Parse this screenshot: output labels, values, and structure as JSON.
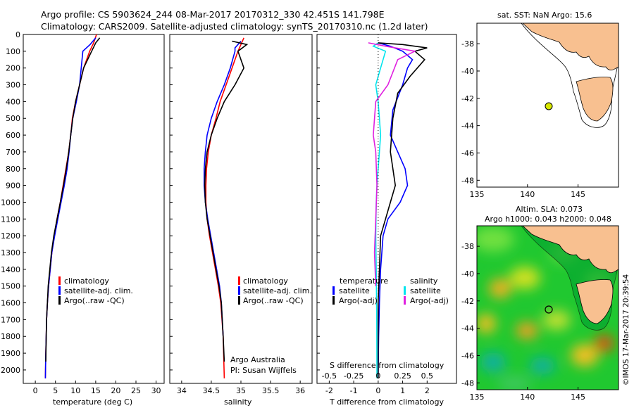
{
  "header": {
    "line1": "Argo profile: CS 5903624_244 08-Mar-2017 20170312_330 42.451S 141.798E",
    "line2": "Climatology: CARS2009. Satellite-adjusted climatology: synTS_20170310.nc (1.2d later)"
  },
  "chart_data": [
    {
      "type": "line",
      "panel": "temperature",
      "xlabel": "temperature (deg C)",
      "xlim": [
        -3,
        32
      ],
      "xticks": [
        0,
        5,
        10,
        15,
        20,
        25,
        30
      ],
      "ylim": [
        0,
        2080
      ],
      "yticks": [
        0,
        100,
        200,
        300,
        400,
        500,
        600,
        700,
        800,
        900,
        1000,
        1100,
        1200,
        1300,
        1400,
        1500,
        1600,
        1700,
        1800,
        1900,
        2000
      ],
      "legend": [
        "climatology",
        "satellite-adj. clim.",
        "Argo(..raw -QC)"
      ],
      "colors": {
        "climatology": "#ff0000",
        "satellite": "#0000ff",
        "argo": "#000000"
      },
      "series": [
        {
          "name": "climatology",
          "x": [
            15.2,
            14.5,
            13.5,
            12,
            11,
            10,
            9.2,
            8.8,
            8.3,
            7.6,
            6.9,
            6.2,
            5.4,
            4.7,
            4.1,
            3.7,
            3.3,
            3.0,
            2.8,
            2.7,
            2.6,
            2.5
          ],
          "y": [
            0,
            50,
            100,
            200,
            300,
            400,
            500,
            600,
            700,
            800,
            900,
            1000,
            1100,
            1200,
            1300,
            1400,
            1500,
            1600,
            1700,
            1800,
            1900,
            2050
          ]
        },
        {
          "name": "satellite-adj. clim.",
          "x": [
            15,
            13.6,
            11.8,
            11,
            10.2,
            9.3,
            8.8,
            8.4,
            7.9,
            7.2,
            6.4,
            5.6,
            4.8,
            4.1,
            3.7,
            3.3,
            3.0,
            2.8,
            2.7,
            2.6,
            2.5
          ],
          "y": [
            20,
            60,
            100,
            300,
            400,
            500,
            600,
            700,
            800,
            900,
            1000,
            1100,
            1200,
            1300,
            1400,
            1500,
            1600,
            1700,
            1800,
            1900,
            2050
          ]
        },
        {
          "name": "Argo(..raw -QC)",
          "x": [
            16,
            15,
            14,
            12,
            11,
            10,
            9.3,
            8.8,
            8.3,
            7.7,
            7.0,
            6.2,
            5.4,
            4.6,
            4.0,
            3.6,
            3.2,
            3.0,
            2.8,
            2.7,
            2.6
          ],
          "y": [
            20,
            50,
            100,
            200,
            300,
            400,
            500,
            600,
            700,
            800,
            900,
            1000,
            1100,
            1200,
            1300,
            1400,
            1500,
            1600,
            1700,
            1800,
            1950
          ]
        }
      ]
    },
    {
      "type": "line",
      "panel": "salinity",
      "xlabel": "salinity",
      "xlim": [
        33.8,
        36.2
      ],
      "xticks": [
        34,
        34.5,
        35,
        35.5,
        36
      ],
      "ylim": [
        0,
        2080
      ],
      "legend": [
        "climatology",
        "satellite-adj. clim.",
        "Argo(..raw -QC)"
      ],
      "annotation": [
        "Argo Australia",
        "PI: Susan Wijffels"
      ],
      "series": [
        {
          "name": "climatology",
          "x": [
            35.05,
            35.0,
            34.95,
            34.85,
            34.75,
            34.65,
            34.58,
            34.5,
            34.45,
            34.42,
            34.41,
            34.41,
            34.43,
            34.47,
            34.52,
            34.57,
            34.62,
            34.66,
            34.7,
            34.72
          ],
          "y": [
            20,
            60,
            100,
            200,
            300,
            400,
            500,
            600,
            700,
            800,
            900,
            1000,
            1100,
            1200,
            1300,
            1400,
            1500,
            1600,
            1800,
            2050
          ]
        },
        {
          "name": "satellite-adj. clim.",
          "x": [
            35.0,
            34.9,
            34.9,
            34.82,
            34.72,
            34.6,
            34.5,
            34.43,
            34.4,
            34.38,
            34.38,
            34.4,
            34.44,
            34.49,
            34.54,
            34.59,
            34.64,
            34.67,
            34.7
          ],
          "y": [
            40,
            80,
            100,
            200,
            300,
            400,
            500,
            600,
            700,
            800,
            900,
            1000,
            1100,
            1200,
            1300,
            1400,
            1500,
            1600,
            1800
          ]
        },
        {
          "name": "Argo(..raw -QC)",
          "x": [
            34.85,
            35.1,
            34.95,
            35.05,
            34.9,
            34.72,
            34.6,
            34.5,
            34.43,
            34.4,
            34.39,
            34.4,
            34.43,
            34.48,
            34.53,
            34.58,
            34.63,
            34.67,
            34.7,
            34.72
          ],
          "y": [
            40,
            60,
            100,
            200,
            300,
            400,
            500,
            600,
            700,
            800,
            900,
            1000,
            1100,
            1200,
            1300,
            1400,
            1500,
            1600,
            1800,
            1950
          ]
        }
      ]
    },
    {
      "type": "line",
      "panel": "difference",
      "xlabel": "T difference from climatology",
      "top_label": "S difference from climatology",
      "xlim": [
        -2.5,
        3.2
      ],
      "xticks": [
        -2,
        -1,
        0,
        1,
        2
      ],
      "top_ticks": [
        "-0.5",
        "-0.25",
        "0",
        "0.25",
        "0.5"
      ],
      "ylim": [
        0,
        2080
      ],
      "legend": {
        "temperature": [
          "satellite",
          "Argo(-adj)"
        ],
        "salinity": [
          "satellite",
          "Argo(-adj)"
        ]
      },
      "legend_headers": [
        "temperature",
        "salinity"
      ],
      "colors": {
        "t_sat": "#0000ff",
        "t_argo": "#000000",
        "s_sat": "#00e5ee",
        "s_argo": "#e020e0"
      },
      "series": [
        {
          "name": "T satellite",
          "x": [
            0,
            0.5,
            1.0,
            1.4,
            1.2,
            1.0,
            0.6,
            0.5,
            0.8,
            1.1,
            1.2,
            0.9,
            0.4,
            0.2,
            0.1,
            0.05,
            0.02,
            0
          ],
          "y": [
            50,
            70,
            100,
            150,
            200,
            300,
            450,
            600,
            700,
            800,
            900,
            1000,
            1100,
            1200,
            1400,
            1600,
            1800,
            2050
          ]
        },
        {
          "name": "T Argo(-adj)",
          "x": [
            0,
            1.0,
            2.0,
            1.5,
            1.9,
            1.3,
            0.8,
            0.6,
            0.5,
            0.6,
            0.7,
            0.5,
            0.3,
            0.1,
            0.05,
            0,
            0
          ],
          "y": [
            50,
            60,
            80,
            100,
            150,
            250,
            350,
            500,
            700,
            800,
            900,
            1000,
            1100,
            1200,
            1400,
            1600,
            2050
          ]
        },
        {
          "name": "S satellite",
          "x": [
            0,
            -0.2,
            0.3,
            0.1,
            -0.1,
            0,
            0.05,
            0.1,
            0.05,
            0,
            -0.05,
            -0.08,
            -0.1,
            -0.08,
            -0.06,
            -0.05
          ],
          "y": [
            50,
            70,
            100,
            200,
            300,
            400,
            500,
            600,
            700,
            800,
            900,
            1000,
            1200,
            1400,
            1700,
            2050
          ]
        },
        {
          "name": "S Argo(-adj)",
          "x": [
            -0.4,
            0.3,
            1.5,
            0.8,
            0.4,
            -0.1,
            -0.2,
            -0.1,
            -0.05,
            -0.1,
            -0.15,
            -0.1
          ],
          "y": [
            50,
            70,
            100,
            150,
            300,
            400,
            600,
            700,
            900,
            1100,
            1300,
            1500
          ]
        }
      ]
    }
  ],
  "map_sst": {
    "title": "sat. SST: NaN Argo: 15.6",
    "xticks": [
      "135",
      "140",
      "145"
    ],
    "yticks": [
      "-38",
      "-40",
      "-42",
      "-44",
      "-46",
      "-48"
    ],
    "xlim": [
      135,
      149
    ],
    "ylim": [
      -48.5,
      -36.5
    ],
    "argo_lon": 141.798,
    "argo_lat": -42.451,
    "colors": {
      "land": "#f8c090",
      "marker": "#d8e800"
    }
  },
  "map_sla": {
    "title_line1": "Altim. SLA: 0.073",
    "title_line2": "Argo h1000: 0.043 h2000: 0.048",
    "xticks": [
      "135",
      "140",
      "145"
    ],
    "yticks": [
      "-38",
      "-40",
      "-42",
      "-44",
      "-46",
      "-48"
    ],
    "xlim": [
      135,
      149
    ],
    "ylim": [
      -48.5,
      -36.5
    ],
    "argo_lon": 141.798,
    "argo_lat": -42.451,
    "credit": "©IMOS 17-Mar-2017 20:39:54"
  },
  "yaxis_ticks": [
    "0",
    "100",
    "200",
    "300",
    "400",
    "500",
    "600",
    "700",
    "800",
    "900",
    "1000",
    "1100",
    "1200",
    "1300",
    "1400",
    "1500",
    "1600",
    "1700",
    "1800",
    "1900",
    "2000"
  ]
}
